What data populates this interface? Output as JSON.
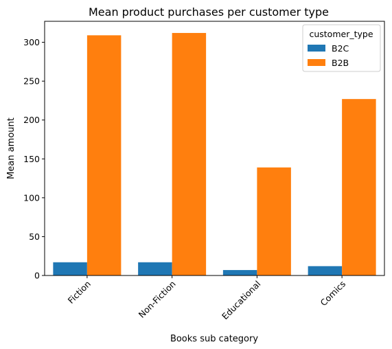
{
  "chart_data": {
    "type": "bar",
    "title": "Mean product purchases per customer type",
    "xlabel": "Books sub category",
    "ylabel": "Mean amount",
    "categories": [
      "Fiction",
      "Non-Fiction",
      "Educational",
      "Comics"
    ],
    "series": [
      {
        "name": "B2C",
        "color": "#1f77b4",
        "values": [
          17,
          17,
          7,
          12
        ]
      },
      {
        "name": "B2B",
        "color": "#ff7f0e",
        "values": [
          309,
          312,
          139,
          227
        ]
      }
    ],
    "ylim": [
      0,
      327
    ],
    "yticks": [
      0,
      50,
      100,
      150,
      200,
      250,
      300
    ],
    "ytick_labels": [
      "0",
      "50",
      "100",
      "150",
      "200",
      "250",
      "300"
    ],
    "grid": false,
    "legend": {
      "title": "customer_type",
      "placement": "top-right"
    }
  }
}
